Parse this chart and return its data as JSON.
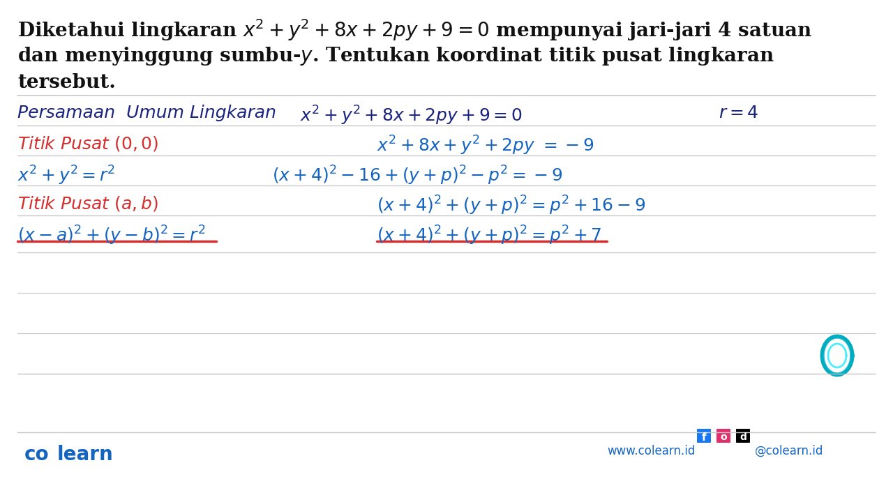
{
  "bg_color": "#ffffff",
  "red_color": "#d32f2f",
  "blue_color": "#1565C0",
  "dark_ink": "#1a237e",
  "black": "#111111",
  "line_color": "#c8c8c8",
  "colearn_color": "#1565C0",
  "teal_color": "#00ACC1",
  "title_line1": "Diketahui lingkaran $x^2+y^2+8x+2py+9=0$ mempunyai jari-jari 4 satuan",
  "title_line2": "dan menyinggung sumbu-$y$. Tentukan koordinat titik pusat lingkaran",
  "title_line3": "tersebut.",
  "hdr_left": "Persamaan  Umum Lingkaran",
  "hdr_mid": "$x^2+y^2 + 8x+2py+9=0$",
  "hdr_right": "$r = 4$",
  "r1_left": "Titik Pusat $(0,0)$",
  "r1_right": "$x^2+8x + y^2+2py\\ =-9$",
  "r2_left": "$x^2+y^2=r^2$",
  "r2_right": "$(x+4)^2-16+(y+p)^2-p^2=-9$",
  "r3_left": "Titik Pusat $(a,b)$",
  "r3_right": "$(x+4)^2+(y+p)^2=p^2+16-9$",
  "r4_left": "$(x-a)^2+(y-b)^2=r^2$",
  "r4_right": "$(x+4)^2+(y+p)^2=p^2+7$",
  "footer_brand": "co  learn",
  "footer_url": "www.colearn.id",
  "footer_social": "@colearn.id"
}
